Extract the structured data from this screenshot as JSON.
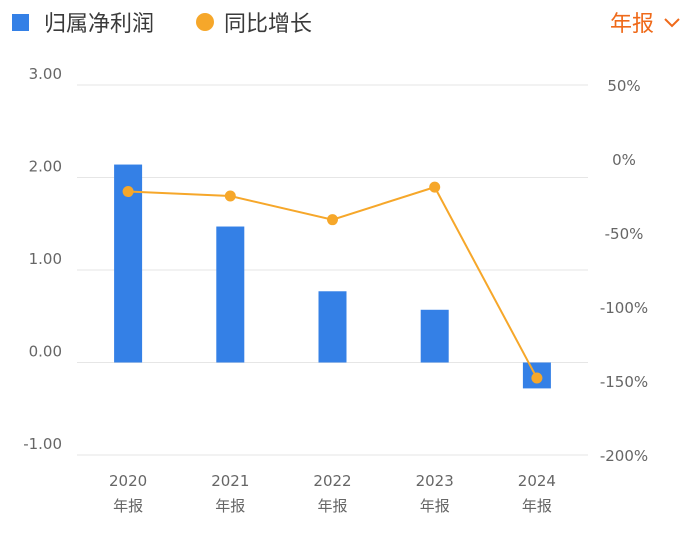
{
  "legend": {
    "bar_label": "归属净利润",
    "line_label": "同比增长"
  },
  "period_selector": {
    "label": "年报"
  },
  "colors": {
    "bar": "#3480e6",
    "line": "#f6a72a",
    "accent": "#ef6a1a",
    "grid": "#e6e6e6"
  },
  "chart_data": {
    "type": "bar",
    "categories": [
      "2020\n年报",
      "2021\n年报",
      "2022\n年报",
      "2023\n年报",
      "2024\n年报"
    ],
    "series": [
      {
        "values": [
          2.14,
          1.47,
          0.77,
          0.57,
          -0.28
        ],
        "axis": "left",
        "kind": "bar"
      },
      {
        "values": [
          -22,
          -25,
          -41,
          -19,
          -148
        ],
        "axis": "right",
        "kind": "line",
        "unit": "%"
      }
    ],
    "left_axis": {
      "ticks": [
        "3.00",
        "2.00",
        "1.00",
        "0.00",
        "-1.00"
      ],
      "ylim": [
        -1,
        3
      ]
    },
    "right_axis": {
      "ticks": [
        "50%",
        "0%",
        "-50%",
        "-100%",
        "-150%",
        "-200%"
      ],
      "ylim": [
        -200,
        50
      ]
    },
    "grid": true,
    "legend_position": "top-left"
  }
}
